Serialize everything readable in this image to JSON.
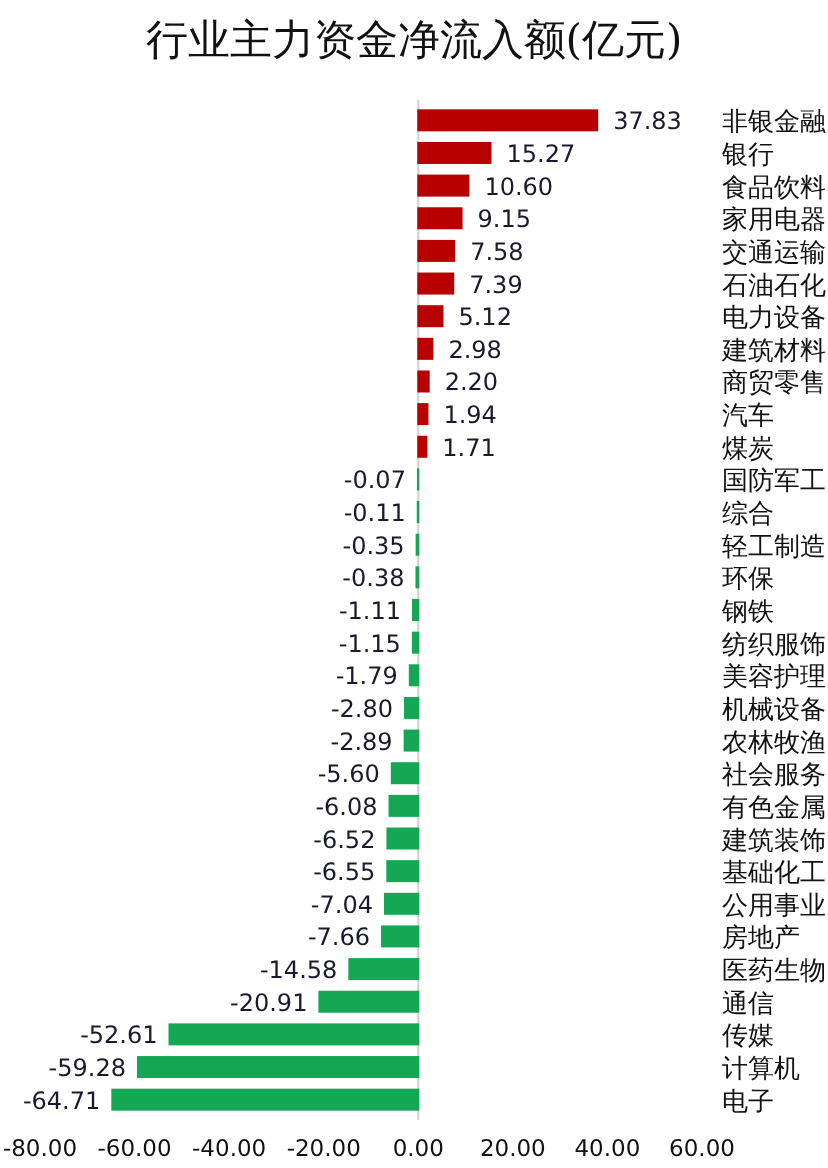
{
  "chart_data": {
    "type": "bar",
    "orientation": "horizontal",
    "title": "行业主力资金净流入额(亿元)",
    "categories": [
      "非银金融",
      "银行",
      "食品饮料",
      "家用电器",
      "交通运输",
      "石油石化",
      "电力设备",
      "建筑材料",
      "商贸零售",
      "汽车",
      "煤炭",
      "国防军工",
      "综合",
      "轻工制造",
      "环保",
      "钢铁",
      "纺织服饰",
      "美容护理",
      "机械设备",
      "农林牧渔",
      "社会服务",
      "有色金属",
      "建筑装饰",
      "基础化工",
      "公用事业",
      "房地产",
      "医药生物",
      "通信",
      "传媒",
      "计算机",
      "电子"
    ],
    "values": [
      37.83,
      15.27,
      10.6,
      9.15,
      7.58,
      7.39,
      5.12,
      2.98,
      2.2,
      1.94,
      1.71,
      -0.07,
      -0.11,
      -0.35,
      -0.38,
      -1.11,
      -1.15,
      -1.79,
      -2.8,
      -2.89,
      -5.6,
      -6.08,
      -6.52,
      -6.55,
      -7.04,
      -7.66,
      -14.58,
      -20.91,
      -52.61,
      -59.28,
      -64.71
    ],
    "value_labels": [
      "37.83",
      "15.27",
      "10.60",
      "9.15",
      "7.58",
      "7.39",
      "5.12",
      "2.98",
      "2.20",
      "1.94",
      "1.71",
      "-0.07",
      "-0.11",
      "-0.35",
      "-0.38",
      "-1.11",
      "-1.15",
      "-1.79",
      "-2.80",
      "-2.89",
      "-5.60",
      "-6.08",
      "-6.52",
      "-6.55",
      "-7.04",
      "-7.66",
      "-14.58",
      "-20.91",
      "-52.61",
      "-59.28",
      "-64.71"
    ],
    "colors": [
      "#b80000",
      "#b80000",
      "#b80000",
      "#b80000",
      "#b80000",
      "#b80000",
      "#b80000",
      "#b80000",
      "#b80000",
      "#b80000",
      "#b80000",
      "#14a855",
      "#14a855",
      "#14a855",
      "#14a855",
      "#14a855",
      "#14a855",
      "#14a855",
      "#14a855",
      "#14a855",
      "#14a855",
      "#14a855",
      "#14a855",
      "#14a855",
      "#14a855",
      "#14a855",
      "#14a855",
      "#14a855",
      "#14a855",
      "#14a855",
      "#14a855"
    ],
    "xlim": [
      -80,
      60
    ],
    "xticks": [
      {
        "value": -80,
        "label": "-80.00"
      },
      {
        "value": -60,
        "label": "-60.00"
      },
      {
        "value": -40,
        "label": "-40.00"
      },
      {
        "value": -20,
        "label": "-20.00"
      },
      {
        "value": 0,
        "label": "0.00"
      },
      {
        "value": 20,
        "label": "20.00"
      },
      {
        "value": 40,
        "label": "40.00"
      },
      {
        "value": 60,
        "label": "60.00"
      }
    ]
  }
}
